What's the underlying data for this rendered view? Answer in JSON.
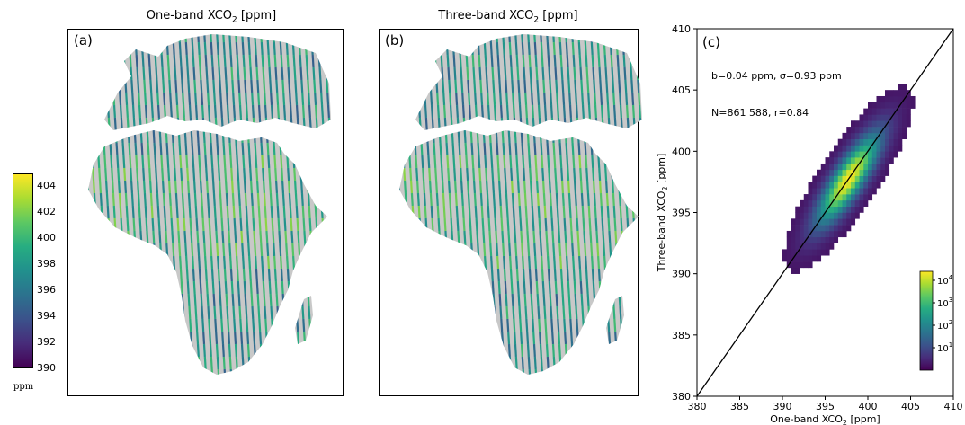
{
  "panels": {
    "a": {
      "title_pre": "One-band XCO",
      "title_sub": "2",
      "title_post": " [ppm]",
      "letter": "(a)"
    },
    "b": {
      "title_pre": "Three-band XCO",
      "title_sub": "2",
      "title_post": " [ppm]",
      "letter": "(b)"
    },
    "c": {
      "letter": "(c)"
    }
  },
  "map_colorbar": {
    "ticks": [
      390,
      392,
      394,
      396,
      398,
      400,
      402,
      404
    ],
    "tick_labels": [
      "390",
      "392",
      "394",
      "396",
      "398",
      "400",
      "402",
      "404"
    ],
    "range": [
      390,
      405
    ],
    "unit": "ppm",
    "colormap": "viridis"
  },
  "colors": {
    "land": "#c8c8c8",
    "colormap": [
      "#440154",
      "#472c7a",
      "#3b528b",
      "#2c728e",
      "#21908d",
      "#27ad81",
      "#5cc863",
      "#aadc32",
      "#fde725"
    ]
  },
  "chart_data": {
    "type": "heatmap",
    "xlabel_pre": "One-band XCO",
    "xlabel_sub": "2",
    "xlabel_post": " [ppm]",
    "ylabel_pre": "Three-band XCO",
    "ylabel_sub": "2",
    "ylabel_post": " [ppm]",
    "xlim": [
      380,
      410
    ],
    "ylim": [
      380,
      410
    ],
    "xticks": [
      380,
      385,
      390,
      395,
      400,
      405,
      410
    ],
    "yticks": [
      380,
      385,
      390,
      395,
      400,
      405,
      410
    ],
    "annotations": [
      "b=0.04 ppm, σ=0.93 ppm",
      "N=861 588, r=0.84"
    ],
    "one_to_one_line": true,
    "center": [
      397.5,
      397.5
    ],
    "count_colorbar": {
      "scale": "log",
      "ticks": [
        10,
        100,
        1000,
        10000
      ],
      "tick_labels": [
        {
          "base": "10",
          "exp": "1"
        },
        {
          "base": "10",
          "exp": "2"
        },
        {
          "base": "10",
          "exp": "3"
        },
        {
          "base": "10",
          "exp": "4"
        }
      ]
    }
  }
}
